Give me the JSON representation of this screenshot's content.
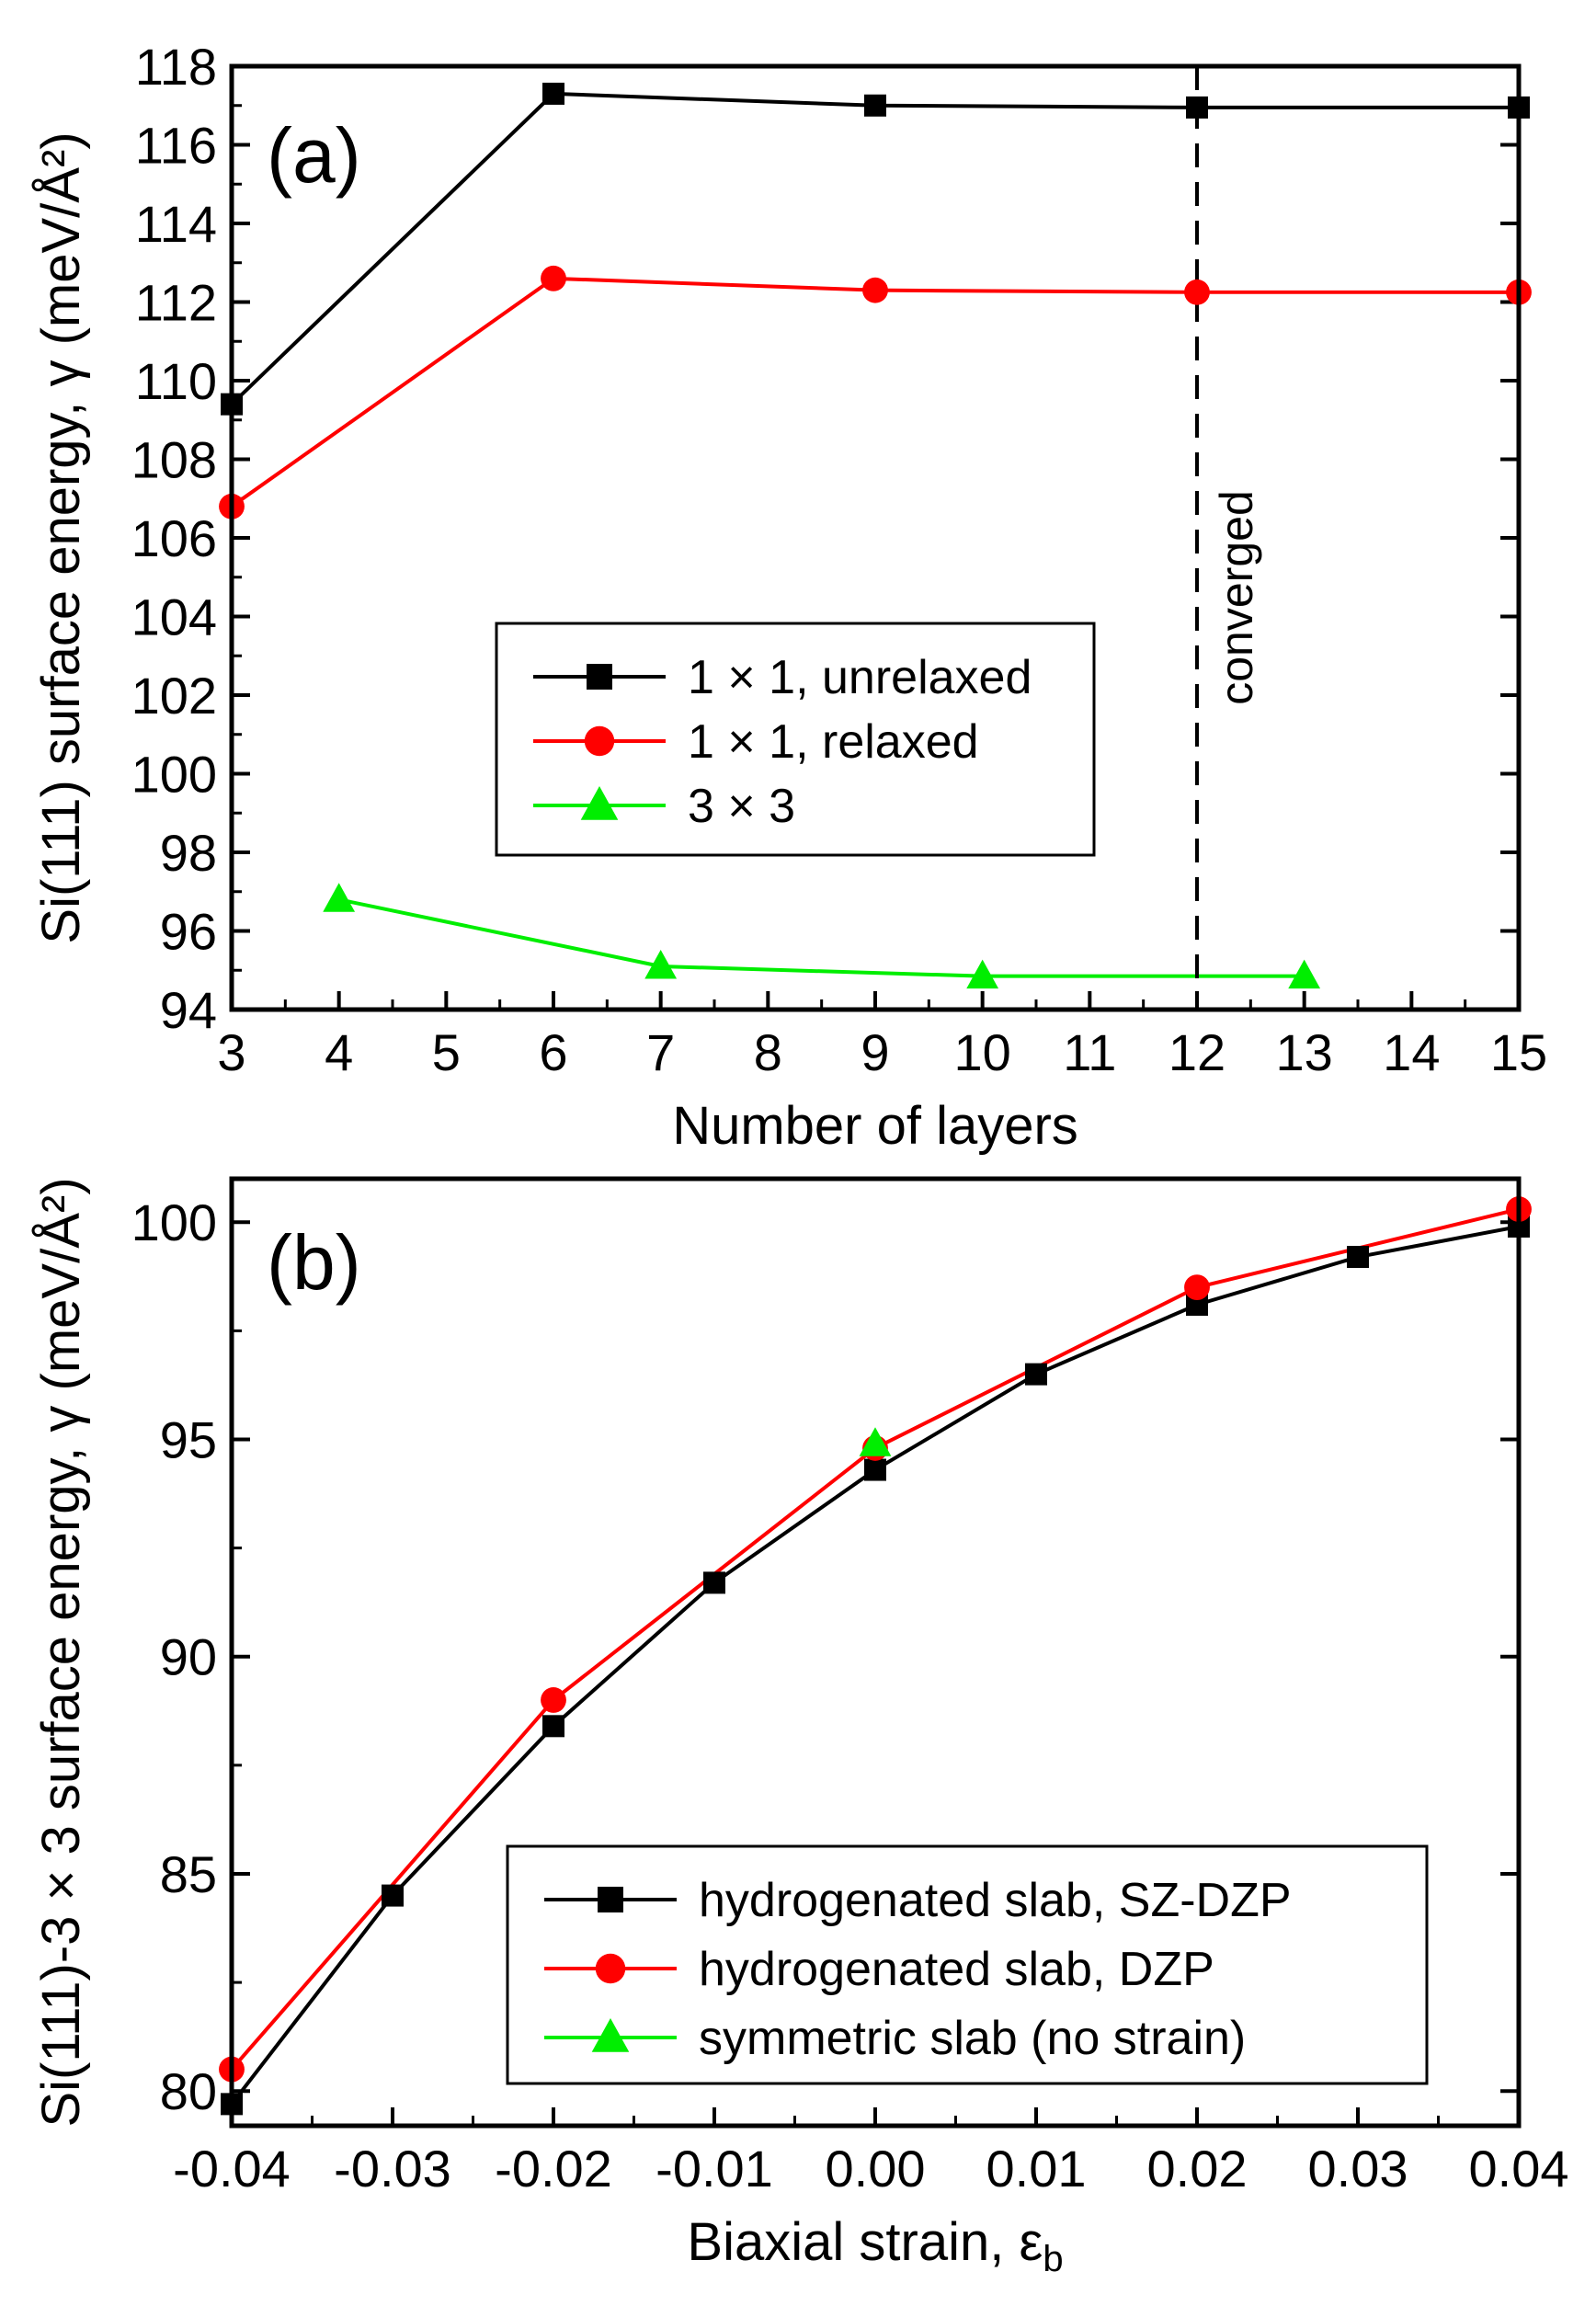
{
  "chart_data": [
    {
      "type": "line",
      "panel_label": "(a)",
      "xlabel": "Number of layers",
      "ylabel": "Si(111) surface energy, γ (meV/Å²)",
      "xlim": [
        3,
        15
      ],
      "ylim": [
        94,
        118
      ],
      "xticks": [
        3,
        4,
        5,
        6,
        7,
        8,
        9,
        10,
        11,
        12,
        13,
        14,
        15
      ],
      "yticks": [
        94,
        96,
        98,
        100,
        102,
        104,
        106,
        108,
        110,
        112,
        114,
        116,
        118
      ],
      "legend_position": "center",
      "series": [
        {
          "name": "1 × 1, unrelaxed",
          "color": "#000000",
          "marker": "square",
          "x": [
            3,
            6,
            9,
            12,
            15
          ],
          "y": [
            109.4,
            117.3,
            117.0,
            116.95,
            116.95
          ]
        },
        {
          "name": "1 × 1, relaxed",
          "color": "#ff0000",
          "marker": "circle",
          "x": [
            3,
            6,
            9,
            12,
            15
          ],
          "y": [
            106.8,
            112.6,
            112.3,
            112.25,
            112.25
          ]
        },
        {
          "name": "3 × 3",
          "color": "#00ee00",
          "marker": "triangle",
          "x": [
            4,
            7,
            10,
            13
          ],
          "y": [
            96.8,
            95.1,
            94.85,
            94.85
          ]
        }
      ],
      "annotations": [
        {
          "type": "vline",
          "x": 12,
          "style": "dashed",
          "label": "converged"
        }
      ]
    },
    {
      "type": "line",
      "panel_label": "(b)",
      "xlabel": "Biaxial strain, ε",
      "xlabel_subscript": "b",
      "ylabel": "Si(111)-3 × 3 surface energy, γ (meV/Å²)",
      "xlim": [
        -0.04,
        0.04
      ],
      "ylim": [
        79.2,
        101.0
      ],
      "xticks": [
        -0.04,
        -0.03,
        -0.02,
        -0.01,
        0.0,
        0.01,
        0.02,
        0.03,
        0.04
      ],
      "xtick_labels": [
        "-0.04",
        "-0.03",
        "-0.02",
        "-0.01",
        "0.00",
        "0.01",
        "0.02",
        "0.03",
        "0.04"
      ],
      "yticks": [
        80,
        85,
        90,
        95,
        100
      ],
      "legend_position": "bottom-right",
      "series": [
        {
          "name": "hydrogenated slab, SZ-DZP",
          "color": "#000000",
          "marker": "square",
          "x": [
            -0.04,
            -0.03,
            -0.02,
            -0.01,
            0.0,
            0.01,
            0.02,
            0.03,
            0.04
          ],
          "y": [
            79.7,
            84.5,
            88.4,
            91.7,
            94.3,
            96.5,
            98.1,
            99.2,
            99.9
          ]
        },
        {
          "name": "hydrogenated slab, DZP",
          "color": "#ff0000",
          "marker": "circle",
          "x": [
            -0.04,
            -0.02,
            0.0,
            0.02,
            0.04
          ],
          "y": [
            80.5,
            89.0,
            94.8,
            98.5,
            100.3
          ]
        },
        {
          "name": "symmetric slab (no strain)",
          "color": "#00ee00",
          "marker": "triangle",
          "x": [
            0.0
          ],
          "y": [
            94.9
          ]
        }
      ]
    }
  ]
}
